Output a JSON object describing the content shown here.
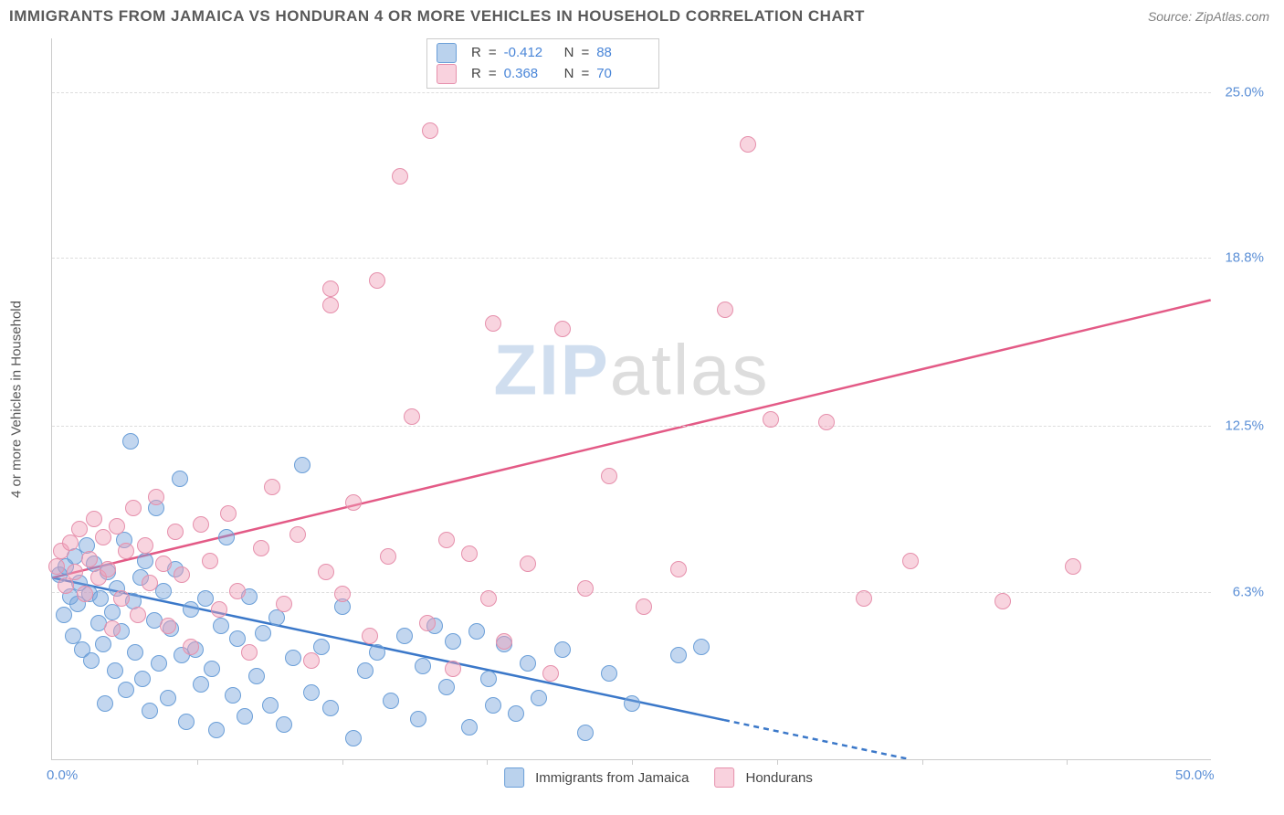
{
  "title": "IMMIGRANTS FROM JAMAICA VS HONDURAN 4 OR MORE VEHICLES IN HOUSEHOLD CORRELATION CHART",
  "source_label": "Source:",
  "source_name": "ZipAtlas.com",
  "y_axis_title": "4 or more Vehicles in Household",
  "watermark_bold": "ZIP",
  "watermark_light": "atlas",
  "chart": {
    "type": "scatter",
    "xlim": [
      0,
      50
    ],
    "ylim": [
      0,
      27
    ],
    "x_ticks": [
      0,
      50
    ],
    "x_tick_labels": [
      "0.0%",
      "50.0%"
    ],
    "x_minor_ticks": [
      6.25,
      12.5,
      18.75,
      25,
      31.25,
      37.5,
      43.75
    ],
    "y_gridlines": [
      6.3,
      12.5,
      18.8,
      25.0
    ],
    "y_tick_labels": [
      "6.3%",
      "12.5%",
      "18.8%",
      "25.0%"
    ],
    "background_color": "#ffffff",
    "grid_color": "#dddddd",
    "axis_color": "#cccccc",
    "tick_label_color": "#5b8fd6",
    "marker_radius": 9,
    "series": [
      {
        "key": "jamaica",
        "label": "Immigrants from Jamaica",
        "R": "-0.412",
        "N": "88",
        "fill": "rgba(120,165,220,0.45)",
        "stroke": "#6b9fd8",
        "swatch_fill": "rgba(140,180,225,0.6)",
        "swatch_border": "#6b9fd8",
        "trend": {
          "x1": 0,
          "y1": 6.8,
          "x2": 37,
          "y2": 0,
          "dash_from_x": 29,
          "color": "#3b78c9",
          "width": 2.5
        },
        "points": [
          [
            0.3,
            6.9
          ],
          [
            0.5,
            5.4
          ],
          [
            0.6,
            7.2
          ],
          [
            0.8,
            6.1
          ],
          [
            0.9,
            4.6
          ],
          [
            1.0,
            7.6
          ],
          [
            1.1,
            5.8
          ],
          [
            1.2,
            6.6
          ],
          [
            1.3,
            4.1
          ],
          [
            1.5,
            8.0
          ],
          [
            1.6,
            6.2
          ],
          [
            1.7,
            3.7
          ],
          [
            1.8,
            7.3
          ],
          [
            2.0,
            5.1
          ],
          [
            2.1,
            6.0
          ],
          [
            2.2,
            4.3
          ],
          [
            2.3,
            2.1
          ],
          [
            2.4,
            7.0
          ],
          [
            2.6,
            5.5
          ],
          [
            2.7,
            3.3
          ],
          [
            2.8,
            6.4
          ],
          [
            3.0,
            4.8
          ],
          [
            3.1,
            8.2
          ],
          [
            3.2,
            2.6
          ],
          [
            3.4,
            11.9
          ],
          [
            3.5,
            5.9
          ],
          [
            3.6,
            4.0
          ],
          [
            3.8,
            6.8
          ],
          [
            3.9,
            3.0
          ],
          [
            4.0,
            7.4
          ],
          [
            4.2,
            1.8
          ],
          [
            4.4,
            5.2
          ],
          [
            4.5,
            9.4
          ],
          [
            4.6,
            3.6
          ],
          [
            4.8,
            6.3
          ],
          [
            5.0,
            2.3
          ],
          [
            5.1,
            4.9
          ],
          [
            5.3,
            7.1
          ],
          [
            5.5,
            10.5
          ],
          [
            5.6,
            3.9
          ],
          [
            5.8,
            1.4
          ],
          [
            6.0,
            5.6
          ],
          [
            6.2,
            4.1
          ],
          [
            6.4,
            2.8
          ],
          [
            6.6,
            6.0
          ],
          [
            6.9,
            3.4
          ],
          [
            7.1,
            1.1
          ],
          [
            7.3,
            5.0
          ],
          [
            7.5,
            8.3
          ],
          [
            7.8,
            2.4
          ],
          [
            8.0,
            4.5
          ],
          [
            8.3,
            1.6
          ],
          [
            8.5,
            6.1
          ],
          [
            8.8,
            3.1
          ],
          [
            9.1,
            4.7
          ],
          [
            9.4,
            2.0
          ],
          [
            9.7,
            5.3
          ],
          [
            10.0,
            1.3
          ],
          [
            10.4,
            3.8
          ],
          [
            10.8,
            11.0
          ],
          [
            11.2,
            2.5
          ],
          [
            11.6,
            4.2
          ],
          [
            12.0,
            1.9
          ],
          [
            12.5,
            5.7
          ],
          [
            13.0,
            0.8
          ],
          [
            13.5,
            3.3
          ],
          [
            14.0,
            4.0
          ],
          [
            14.6,
            2.2
          ],
          [
            15.2,
            4.6
          ],
          [
            15.8,
            1.5
          ],
          [
            16.0,
            3.5
          ],
          [
            16.5,
            5.0
          ],
          [
            17.0,
            2.7
          ],
          [
            17.3,
            4.4
          ],
          [
            18.0,
            1.2
          ],
          [
            18.3,
            4.8
          ],
          [
            18.8,
            3.0
          ],
          [
            19.0,
            2.0
          ],
          [
            19.5,
            4.3
          ],
          [
            20.0,
            1.7
          ],
          [
            20.5,
            3.6
          ],
          [
            21.0,
            2.3
          ],
          [
            22.0,
            4.1
          ],
          [
            23.0,
            1.0
          ],
          [
            24.0,
            3.2
          ],
          [
            25.0,
            2.1
          ],
          [
            27.0,
            3.9
          ],
          [
            28.0,
            4.2
          ]
        ]
      },
      {
        "key": "honduran",
        "label": "Hondurans",
        "R": "0.368",
        "N": "70",
        "fill": "rgba(240,160,185,0.45)",
        "stroke": "#e690ac",
        "swatch_fill": "rgba(245,180,200,0.6)",
        "swatch_border": "#e690ac",
        "trend": {
          "x1": 0,
          "y1": 6.8,
          "x2": 50,
          "y2": 17.2,
          "color": "#e35a86",
          "width": 2.5
        },
        "points": [
          [
            0.2,
            7.2
          ],
          [
            0.4,
            7.8
          ],
          [
            0.6,
            6.5
          ],
          [
            0.8,
            8.1
          ],
          [
            1.0,
            7.0
          ],
          [
            1.2,
            8.6
          ],
          [
            1.4,
            6.2
          ],
          [
            1.6,
            7.5
          ],
          [
            1.8,
            9.0
          ],
          [
            2.0,
            6.8
          ],
          [
            2.2,
            8.3
          ],
          [
            2.4,
            7.1
          ],
          [
            2.6,
            4.9
          ],
          [
            2.8,
            8.7
          ],
          [
            3.0,
            6.0
          ],
          [
            3.2,
            7.8
          ],
          [
            3.5,
            9.4
          ],
          [
            3.7,
            5.4
          ],
          [
            4.0,
            8.0
          ],
          [
            4.2,
            6.6
          ],
          [
            4.5,
            9.8
          ],
          [
            4.8,
            7.3
          ],
          [
            5.0,
            5.0
          ],
          [
            5.3,
            8.5
          ],
          [
            5.6,
            6.9
          ],
          [
            6.0,
            4.2
          ],
          [
            6.4,
            8.8
          ],
          [
            6.8,
            7.4
          ],
          [
            7.2,
            5.6
          ],
          [
            7.6,
            9.2
          ],
          [
            8.0,
            6.3
          ],
          [
            8.5,
            4.0
          ],
          [
            9.0,
            7.9
          ],
          [
            9.5,
            10.2
          ],
          [
            10.0,
            5.8
          ],
          [
            10.6,
            8.4
          ],
          [
            11.2,
            3.7
          ],
          [
            11.8,
            7.0
          ],
          [
            12.0,
            17.6
          ],
          [
            12.0,
            17.0
          ],
          [
            12.5,
            6.2
          ],
          [
            13.0,
            9.6
          ],
          [
            13.7,
            4.6
          ],
          [
            14.0,
            17.9
          ],
          [
            14.5,
            7.6
          ],
          [
            15.0,
            21.8
          ],
          [
            15.5,
            12.8
          ],
          [
            16.2,
            5.1
          ],
          [
            16.3,
            23.5
          ],
          [
            17.0,
            8.2
          ],
          [
            17.3,
            3.4
          ],
          [
            18.0,
            7.7
          ],
          [
            18.8,
            6.0
          ],
          [
            19.0,
            16.3
          ],
          [
            19.5,
            4.4
          ],
          [
            20.5,
            7.3
          ],
          [
            21.5,
            3.2
          ],
          [
            22.0,
            16.1
          ],
          [
            23.0,
            6.4
          ],
          [
            24.0,
            10.6
          ],
          [
            25.5,
            5.7
          ],
          [
            27.0,
            7.1
          ],
          [
            29.0,
            16.8
          ],
          [
            30.0,
            23.0
          ],
          [
            31.0,
            12.7
          ],
          [
            33.4,
            12.6
          ],
          [
            35.0,
            6.0
          ],
          [
            37.0,
            7.4
          ],
          [
            41.0,
            5.9
          ],
          [
            44.0,
            7.2
          ]
        ]
      }
    ],
    "legend_stats_labels": {
      "R": "R",
      "N": "N",
      "eq": "="
    }
  }
}
